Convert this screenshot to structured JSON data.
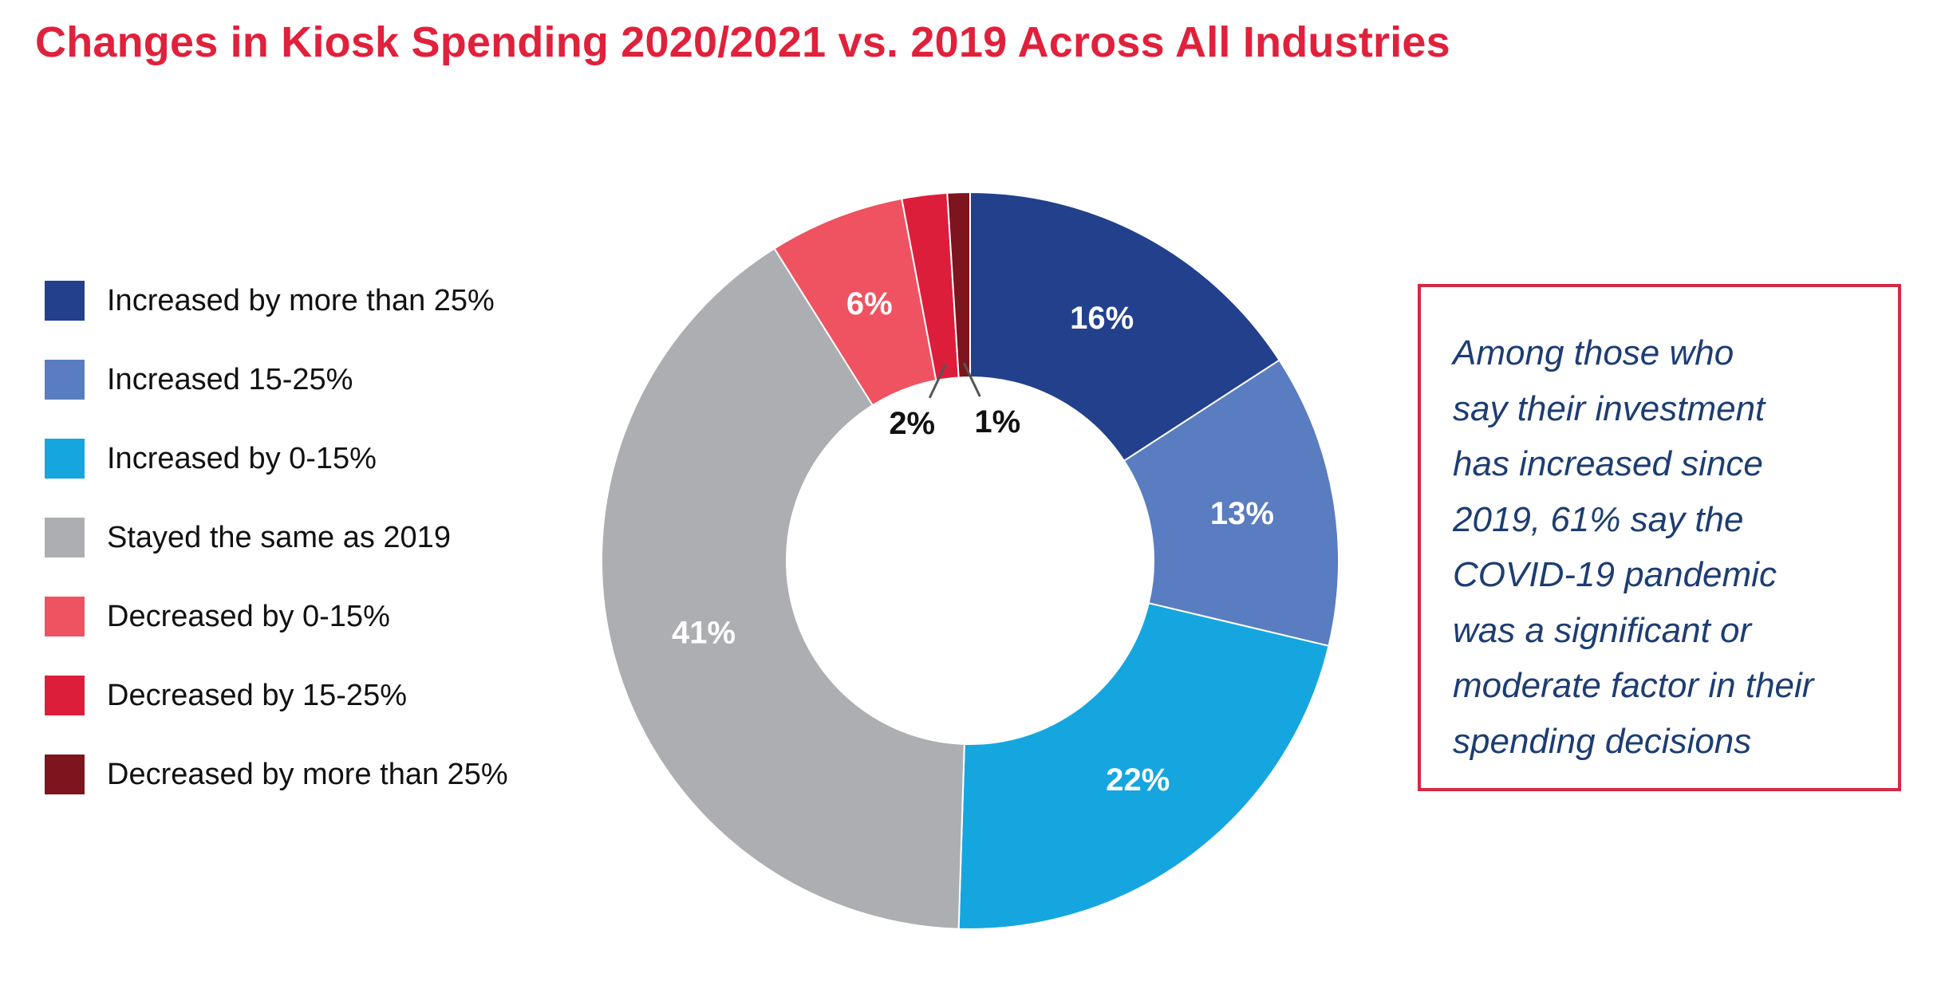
{
  "title": "Changes in Kiosk Spending 2020/2021 vs. 2019 Across All Industries",
  "chart_data": {
    "type": "pie",
    "variant": "donut",
    "title": "Changes in Kiosk Spending 2020/2021 vs. 2019 Across All Industries",
    "legend_position": "left",
    "slices": [
      {
        "label": "Increased by more than 25%",
        "value": 16,
        "display": "16%",
        "color": "#22408c"
      },
      {
        "label": "Increased 15-25%",
        "value": 13,
        "display": "13%",
        "color": "#597dc0"
      },
      {
        "label": "Increased by 0-15%",
        "value": 22,
        "display": "22%",
        "color": "#16a6df"
      },
      {
        "label": "Stayed the same as 2019",
        "value": 41,
        "display": "41%",
        "color": "#adaeb1"
      },
      {
        "label": "Decreased by 0-15%",
        "value": 6,
        "display": "6%",
        "color": "#ef5261"
      },
      {
        "label": "Decreased by 15-25%",
        "value": 2,
        "display": "2%",
        "color": "#dd1e3b"
      },
      {
        "label": "Decreased by more than 25%",
        "value": 1,
        "display": "1%",
        "color": "#7d141e"
      }
    ]
  },
  "note": {
    "text": "Among those who\nsay their investment\nhas increased since\n2019, 61% say the\nCOVID-19 pandemic\nwas a significant or\nmoderate factor in their\nspending decisions"
  }
}
